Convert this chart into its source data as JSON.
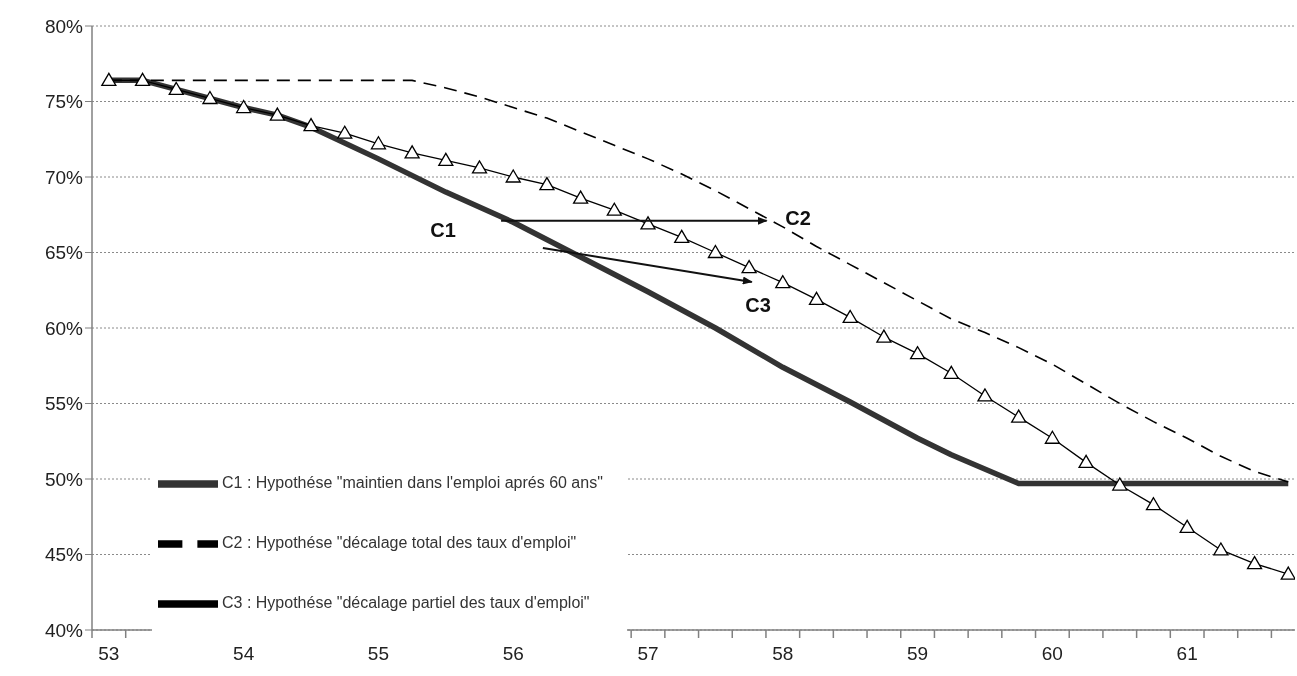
{
  "chart_data": {
    "type": "line",
    "xlim": [
      52.875,
      61.8
    ],
    "ylim": [
      40,
      80
    ],
    "xticks": [
      53,
      54,
      55,
      56,
      57,
      58,
      59,
      60,
      61,
      {
        "value": 52.875,
        "label": null
      },
      {
        "value": 53.125,
        "label": null
      },
      {
        "value": 53.375,
        "label": null
      },
      {
        "value": 53.625,
        "label": null
      },
      {
        "value": 53.875,
        "label": null
      },
      {
        "value": 54.125,
        "label": null
      },
      {
        "value": 54.375,
        "label": null
      },
      {
        "value": 54.625,
        "label": null
      },
      {
        "value": 54.875,
        "label": null
      },
      {
        "value": 55.125,
        "label": null
      },
      {
        "value": 55.375,
        "label": null
      },
      {
        "value": 55.625,
        "label": null
      },
      {
        "value": 55.875,
        "label": null
      },
      {
        "value": 56.125,
        "label": null
      },
      {
        "value": 56.375,
        "label": null
      },
      {
        "value": 56.625,
        "label": null
      },
      {
        "value": 56.875,
        "label": null
      },
      {
        "value": 57.125,
        "label": null
      },
      {
        "value": 57.375,
        "label": null
      },
      {
        "value": 57.625,
        "label": null
      },
      {
        "value": 57.875,
        "label": null
      },
      {
        "value": 58.125,
        "label": null
      },
      {
        "value": 58.375,
        "label": null
      },
      {
        "value": 58.625,
        "label": null
      },
      {
        "value": 58.875,
        "label": null
      },
      {
        "value": 59.125,
        "label": null
      },
      {
        "value": 59.375,
        "label": null
      },
      {
        "value": 59.625,
        "label": null
      },
      {
        "value": 59.875,
        "label": null
      },
      {
        "value": 60.125,
        "label": null
      },
      {
        "value": 60.375,
        "label": null
      },
      {
        "value": 60.625,
        "label": null
      },
      {
        "value": 60.875,
        "label": null
      },
      {
        "value": 61.125,
        "label": null
      },
      {
        "value": 61.375,
        "label": null
      },
      {
        "value": 61.625,
        "label": null
      }
    ],
    "yticks": [
      {
        "value": 40,
        "label": "40%"
      },
      {
        "value": 45,
        "label": "45%"
      },
      {
        "value": 50,
        "label": "50%"
      },
      {
        "value": 55,
        "label": "55%"
      },
      {
        "value": 60,
        "label": "60%"
      },
      {
        "value": 65,
        "label": "65%"
      },
      {
        "value": 70,
        "label": "70%"
      },
      {
        "value": 75,
        "label": "75%"
      },
      {
        "value": 80,
        "label": "80%"
      }
    ],
    "grid": "y",
    "legend": "bottom left",
    "annotations": [
      "C1",
      "C2",
      "C3"
    ],
    "series": [
      {
        "name": "C1 : Hypothése \"maintien dans l'emploi aprés 60 ans\"",
        "color": "#333333",
        "line_style": "solid",
        "marker": "none",
        "x": [
          53,
          53.25,
          53.5,
          53.75,
          54,
          54.25,
          54.5,
          55,
          55.5,
          56,
          56.5,
          57,
          57.5,
          58,
          58.5,
          59,
          59.25,
          59.75,
          61.75
        ],
        "values": [
          76.4,
          76.4,
          75.8,
          75.2,
          74.6,
          74.1,
          73.3,
          71.2,
          69.0,
          67.0,
          64.7,
          62.4,
          60.0,
          57.4,
          55.1,
          52.7,
          51.6,
          49.7,
          49.7
        ]
      },
      {
        "name": "C2 : Hypothése \"décalage total des taux d'emploi\"",
        "color": "#000000",
        "line_style": "dashed",
        "marker": "none",
        "x": [
          53,
          55.25,
          55.5,
          55.75,
          56,
          56.25,
          56.5,
          56.75,
          57,
          57.25,
          57.5,
          57.75,
          58,
          58.25,
          58.5,
          58.75,
          59,
          59.25,
          59.5,
          59.75,
          60,
          60.25,
          60.5,
          60.75,
          61,
          61.25,
          61.5,
          61.75
        ],
        "values": [
          76.4,
          76.4,
          75.9,
          75.3,
          74.6,
          73.9,
          73.0,
          72.1,
          71.2,
          70.2,
          69.1,
          67.9,
          66.7,
          65.4,
          64.2,
          63.0,
          61.8,
          60.6,
          59.7,
          58.7,
          57.6,
          56.3,
          55.0,
          53.8,
          52.7,
          51.5,
          50.5,
          49.8
        ]
      },
      {
        "name": "C3 : Hypothése \"décalage partiel des taux d'emploi\"",
        "color": "#000000",
        "line_style": "solid",
        "marker": "triangle",
        "x": [
          53,
          53.25,
          53.5,
          53.75,
          54,
          54.25,
          54.5,
          54.75,
          55,
          55.25,
          55.5,
          55.75,
          56,
          56.25,
          56.5,
          56.75,
          57,
          57.25,
          57.5,
          57.75,
          58,
          58.25,
          58.5,
          58.75,
          59,
          59.25,
          59.5,
          59.75,
          60,
          60.25,
          60.5,
          60.75,
          61,
          61.25,
          61.5,
          61.75
        ],
        "values": [
          76.4,
          76.4,
          75.8,
          75.2,
          74.6,
          74.1,
          73.4,
          72.9,
          72.2,
          71.6,
          71.1,
          70.6,
          70.0,
          69.5,
          68.6,
          67.8,
          66.9,
          66.0,
          65.0,
          64.0,
          63.0,
          61.9,
          60.7,
          59.4,
          58.3,
          57.0,
          55.5,
          54.1,
          52.7,
          51.1,
          49.6,
          48.3,
          46.8,
          45.3,
          44.4,
          43.7
        ]
      }
    ]
  }
}
